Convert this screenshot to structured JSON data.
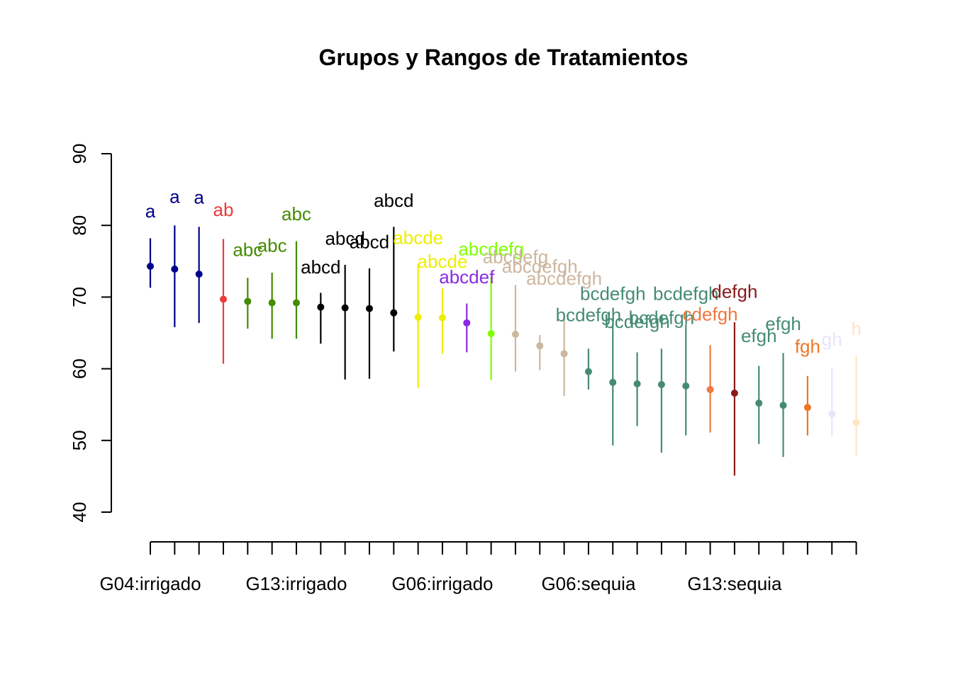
{
  "chart_data": {
    "type": "scatter",
    "title": "Grupos y Rangos de Tratamientos",
    "xlabel": "",
    "ylabel": "",
    "ylim": [
      40,
      90
    ],
    "y_ticks": [
      40,
      50,
      60,
      70,
      80,
      90
    ],
    "x_tick_count": 30,
    "x_tick_labels": [
      {
        "index": 1,
        "label": "G04:irrigado"
      },
      {
        "index": 7,
        "label": "G13:irrigado"
      },
      {
        "index": 13,
        "label": "G06:irrigado"
      },
      {
        "index": 19,
        "label": "G06:sequia"
      },
      {
        "index": 25,
        "label": "G13:sequia"
      }
    ],
    "grid": false,
    "points": [
      {
        "index": 1,
        "mean": 74.3,
        "low": 71.3,
        "high": 78.2,
        "group": "a",
        "color": "#00008B",
        "label_y": 82.0
      },
      {
        "index": 2,
        "mean": 73.9,
        "low": 65.8,
        "high": 80.0,
        "group": "a",
        "color": "#00008B",
        "label_y": 84.0
      },
      {
        "index": 3,
        "mean": 73.2,
        "low": 66.4,
        "high": 79.8,
        "group": "a",
        "color": "#00008B",
        "label_y": 83.9
      },
      {
        "index": 4,
        "mean": 69.7,
        "low": 60.7,
        "high": 78.1,
        "group": "ab",
        "color": "#EE3B3B",
        "label_y": 82.2
      },
      {
        "index": 5,
        "mean": 69.4,
        "low": 65.6,
        "high": 72.7,
        "group": "abc",
        "color": "#458B00",
        "label_y": 76.6
      },
      {
        "index": 6,
        "mean": 69.2,
        "low": 64.2,
        "high": 73.4,
        "group": "abc",
        "color": "#458B00",
        "label_y": 77.2
      },
      {
        "index": 7,
        "mean": 69.2,
        "low": 64.2,
        "high": 77.8,
        "group": "abc",
        "color": "#458B00",
        "label_y": 81.6
      },
      {
        "index": 8,
        "mean": 68.6,
        "low": 63.5,
        "high": 70.6,
        "group": "abcd",
        "color": "#000000",
        "label_y": 74.2
      },
      {
        "index": 9,
        "mean": 68.5,
        "low": 58.5,
        "high": 74.5,
        "group": "abcd",
        "color": "#000000",
        "label_y": 78.2
      },
      {
        "index": 10,
        "mean": 68.4,
        "low": 58.6,
        "high": 74.0,
        "group": "abcd",
        "color": "#000000",
        "label_y": 77.7
      },
      {
        "index": 11,
        "mean": 67.8,
        "low": 62.4,
        "high": 79.8,
        "group": "abcd",
        "color": "#000000",
        "label_y": 83.5
      },
      {
        "index": 12,
        "mean": 67.2,
        "low": 57.3,
        "high": 74.6,
        "group": "abcde",
        "color": "#EEEE00",
        "label_y": 78.3
      },
      {
        "index": 13,
        "mean": 67.1,
        "low": 62.1,
        "high": 71.2,
        "group": "abcde",
        "color": "#EEEE00",
        "label_y": 75.0
      },
      {
        "index": 14,
        "mean": 66.4,
        "low": 62.3,
        "high": 69.1,
        "group": "abcdef",
        "color": "#8A2BE2",
        "label_y": 72.8
      },
      {
        "index": 15,
        "mean": 64.9,
        "low": 58.4,
        "high": 72.8,
        "group": "abcdefg",
        "color": "#7FFF00",
        "label_y": 76.7
      },
      {
        "index": 16,
        "mean": 64.8,
        "low": 59.6,
        "high": 71.7,
        "group": "abcdefg",
        "color": "#CDB79E",
        "label_y": 75.6
      },
      {
        "index": 17,
        "mean": 63.2,
        "low": 59.8,
        "high": 64.7,
        "group": "abcdefgh",
        "color": "#CDB79E",
        "label_y": 74.3
      },
      {
        "index": 18,
        "mean": 62.1,
        "low": 56.2,
        "high": 67.7,
        "group": "abcdefgh",
        "color": "#CDB79E",
        "label_y": 72.6
      },
      {
        "index": 19,
        "mean": 59.6,
        "low": 57.1,
        "high": 62.8,
        "group": "bcdefgh",
        "color": "#458B74",
        "label_y": 67.5
      },
      {
        "index": 20,
        "mean": 58.1,
        "low": 49.3,
        "high": 66.2,
        "group": "bcdefgh",
        "color": "#458B74",
        "label_y": 70.5
      },
      {
        "index": 21,
        "mean": 57.9,
        "low": 52.0,
        "high": 62.3,
        "group": "bcdefgh",
        "color": "#458B74",
        "label_y": 66.6
      },
      {
        "index": 22,
        "mean": 57.8,
        "low": 48.3,
        "high": 62.8,
        "group": "bcdefgh",
        "color": "#458B74",
        "label_y": 67.1
      },
      {
        "index": 23,
        "mean": 57.6,
        "low": 50.7,
        "high": 66.2,
        "group": "bcdefgh",
        "color": "#458B74",
        "label_y": 70.5
      },
      {
        "index": 24,
        "mean": 57.1,
        "low": 51.1,
        "high": 63.3,
        "group": "cdefgh",
        "color": "#EE7942",
        "label_y": 67.6
      },
      {
        "index": 25,
        "mean": 56.6,
        "low": 45.1,
        "high": 66.5,
        "group": "defgh",
        "color": "#8B1A1A",
        "label_y": 70.8
      },
      {
        "index": 26,
        "mean": 55.2,
        "low": 49.5,
        "high": 60.4,
        "group": "efgh",
        "color": "#458B74",
        "label_y": 64.6
      },
      {
        "index": 27,
        "mean": 54.9,
        "low": 47.7,
        "high": 62.2,
        "group": "efgh",
        "color": "#458B74",
        "label_y": 66.3
      },
      {
        "index": 28,
        "mean": 54.6,
        "low": 50.7,
        "high": 59.0,
        "group": "fgh",
        "color": "#EE7621",
        "label_y": 63.1
      },
      {
        "index": 29,
        "mean": 53.7,
        "low": 50.6,
        "high": 60.1,
        "group": "gh",
        "color": "#E6E6FA",
        "label_y": 64.1
      },
      {
        "index": 30,
        "mean": 52.5,
        "low": 47.8,
        "high": 61.8,
        "group": "h",
        "color": "#FFE4C4",
        "label_y": 65.6
      }
    ]
  }
}
